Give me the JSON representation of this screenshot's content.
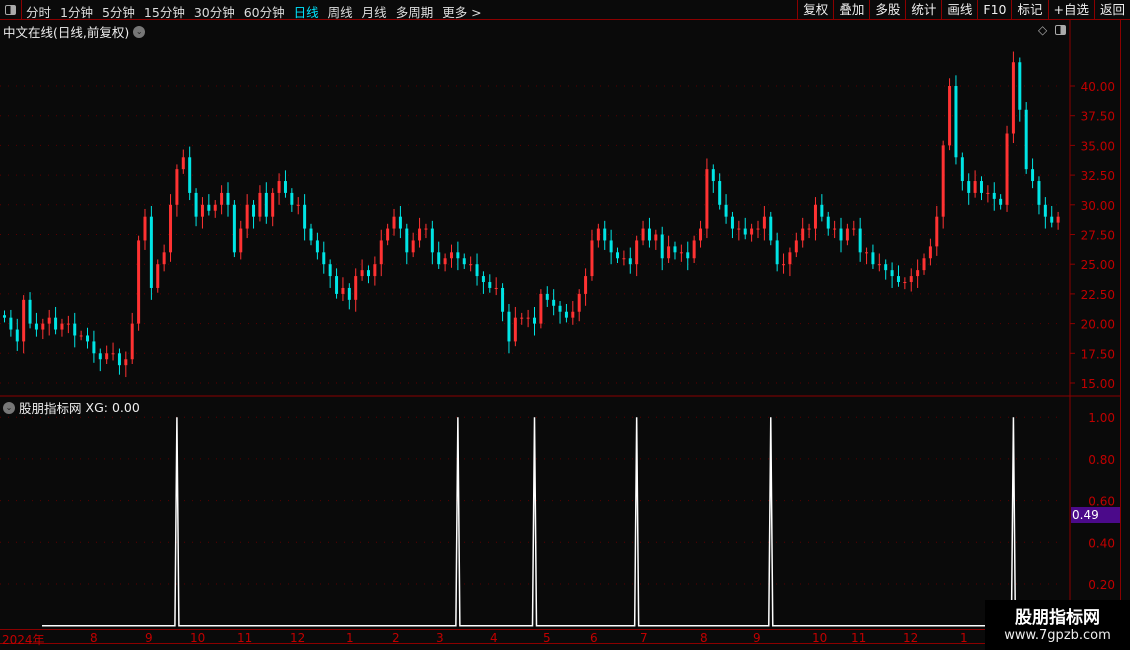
{
  "topbar": {
    "periods": [
      "分时",
      "1分钟",
      "5分钟",
      "15分钟",
      "30分钟",
      "60分钟",
      "日线",
      "周线",
      "月线",
      "多周期",
      "更多 >"
    ],
    "active": "日线",
    "tools": [
      "复权",
      "叠加",
      "多股",
      "统计",
      "画线",
      "F10",
      "标记",
      "+自选",
      "返回"
    ]
  },
  "main": {
    "title": "中文在线(日线,前复权)",
    "price_ticks": [
      "40.00",
      "37.50",
      "35.00",
      "32.50",
      "30.00",
      "27.50",
      "25.00",
      "22.50",
      "20.00",
      "17.50",
      "15.00"
    ]
  },
  "indicator": {
    "title": "股朋指标网",
    "label": "XG: 0.00",
    "ticks": [
      "1.00",
      "0.80",
      "0.60",
      "0.40",
      "0.20"
    ],
    "current_value": "0.49",
    "signal_positions_x_labels": "XG"
  },
  "xaxis": {
    "labels": [
      "2024年",
      "8",
      "9",
      "10",
      "11",
      "12",
      "1",
      "2",
      "3",
      "4",
      "5",
      "6",
      "7",
      "8",
      "9",
      "10",
      "11",
      "12",
      "1"
    ]
  },
  "watermark": {
    "name": "股朋指标网",
    "url": "www.7gpzb.com"
  },
  "colors": {
    "up": "#ff3232",
    "down": "#00e5e5",
    "axis": "#8b0000",
    "tick": "#c00000",
    "active": "#00e5ff"
  },
  "chart_data": {
    "type": "candlestick",
    "ylim": [
      15,
      42.5
    ],
    "closes": [
      20.5,
      19.5,
      18.5,
      22,
      20,
      19.5,
      20,
      20.5,
      19.5,
      20,
      20,
      19,
      19,
      18.5,
      17.5,
      17,
      17.5,
      17.5,
      16.5,
      17,
      20,
      27,
      29,
      23,
      25,
      26,
      30,
      33,
      34,
      31,
      29,
      30,
      29.5,
      30,
      31,
      30,
      26,
      28,
      30,
      29,
      31,
      29,
      31,
      32,
      31,
      30,
      30,
      28,
      27,
      26,
      25,
      24,
      22.5,
      23,
      22,
      24,
      24.5,
      24,
      25,
      27,
      28,
      29,
      28,
      26,
      27,
      28,
      28,
      26,
      25,
      25.5,
      26,
      25.5,
      25,
      25,
      24,
      23.5,
      23,
      23,
      21,
      18.5,
      20.5,
      20.5,
      20.5,
      20,
      22.5,
      22,
      21.5,
      21,
      20.5,
      21,
      22.5,
      24,
      27,
      28,
      27,
      26,
      25.5,
      25.5,
      25,
      27,
      28,
      27,
      27.5,
      25.5,
      26.5,
      26,
      26,
      25.5,
      27,
      28,
      33,
      32,
      30,
      29,
      28,
      28,
      27.5,
      28,
      28,
      29,
      27,
      25,
      25,
      26,
      27,
      28,
      28,
      30,
      29,
      28,
      28,
      27,
      28,
      28,
      26,
      26,
      25,
      25,
      24.5,
      24,
      23.5,
      23.5,
      24,
      24.5,
      25.5,
      26.5,
      29,
      35,
      40,
      34,
      32,
      31,
      32,
      31,
      31,
      30.5,
      30,
      36,
      42,
      38,
      33,
      32,
      30,
      29,
      28.5,
      29
    ],
    "indicator_series": {
      "name": "XG",
      "signals_at_candle": [
        27,
        71,
        83,
        99,
        120,
        158
      ],
      "baseline": 0,
      "peak": 1
    }
  }
}
